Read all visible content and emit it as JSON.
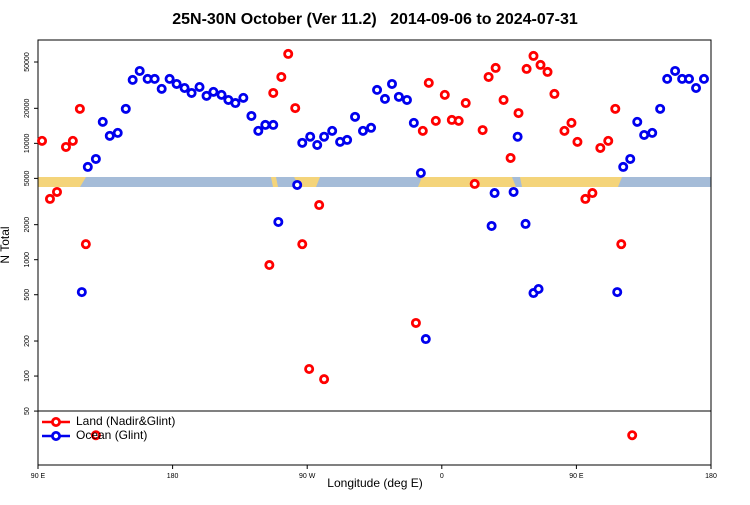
{
  "chart_data": {
    "type": "scatter",
    "title": "25N-30N October (Ver 11.2)   2014-09-06 to 2024-07-31",
    "x_label": "Longitude (deg E)",
    "y_label": "N Total",
    "log_y": true,
    "legend": "bottom left",
    "xlim": [
      90,
      540
    ],
    "xticks": [
      {
        "value": 90,
        "label": "90 E"
      },
      180,
      {
        "value": 270,
        "label": "90 W"
      },
      {
        "value": 360,
        "label": "0"
      },
      {
        "value": 450,
        "label": "90 E"
      },
      {
        "value": 540,
        "label": "180"
      }
    ],
    "ylim": [
      17.2,
      77300
    ],
    "yticks": [
      50,
      100,
      200,
      500,
      1000,
      2000,
      5000,
      10000,
      20000,
      50000
    ],
    "series": [
      {
        "name": "Land (Nadir&Glint)",
        "color": "#ff0000",
        "x": [
          92.7,
          98,
          102.7,
          108.7,
          113.3,
          118,
          122,
          128.7,
          244.7,
          247.3,
          252.7,
          257.3,
          262,
          266.7,
          271.3,
          281.3,
          278,
          342.7,
          347.3,
          351.3,
          356,
          362,
          366.7,
          371.3,
          376,
          382,
          387.3,
          391.3,
          396,
          401.3,
          406,
          411.3,
          416.7,
          421.3,
          426,
          430.7,
          435.3,
          442,
          446.7,
          450.7,
          456,
          460.7,
          466,
          471.3,
          476,
          480,
          487.3
        ],
        "values": [
          10500,
          3330,
          3820,
          9310,
          10500,
          19800,
          1360,
          31,
          900,
          27100,
          37200,
          58700,
          20100,
          1360,
          115,
          94,
          2950,
          286,
          12800,
          33100,
          15600,
          26100,
          15900,
          15600,
          22200,
          4480,
          13000,
          37200,
          44500,
          23600,
          7490,
          18200,
          43600,
          56400,
          47200,
          41100,
          26600,
          12800,
          15000,
          10300,
          3330,
          3740,
          9130,
          10500,
          19800,
          1360,
          31
        ]
      },
      {
        "name": "Ocean (Glint)",
        "color": "#0000ee",
        "x": [
          119.3,
          123.3,
          128.7,
          133.3,
          138,
          143.3,
          148.7,
          153.3,
          158,
          163.3,
          168,
          172.7,
          178,
          182.7,
          188,
          192.7,
          198,
          202.7,
          207.3,
          212.7,
          217.3,
          222,
          227.3,
          232.7,
          237.3,
          242,
          247.3,
          250.7,
          263.3,
          266.7,
          272,
          276.7,
          281.3,
          286.7,
          292,
          296.7,
          302,
          307.3,
          312.7,
          316.7,
          322,
          326.7,
          331.3,
          336.7,
          341.3,
          346,
          349.3,
          393.3,
          395.3,
          408,
          410.7,
          416,
          421.3,
          424.7,
          477.3,
          481.3,
          486,
          490.7,
          495.3,
          500.7,
          506,
          510.7,
          516,
          520.7,
          525.3,
          530,
          535.3
        ],
        "values": [
          527,
          6270,
          7340,
          15300,
          11600,
          12300,
          19800,
          35100,
          41900,
          35800,
          35800,
          29400,
          35800,
          32400,
          29900,
          27100,
          30500,
          25600,
          27700,
          26100,
          23600,
          22200,
          24600,
          17200,
          12800,
          14400,
          14400,
          2110,
          4390,
          10100,
          11400,
          9680,
          11400,
          12800,
          10300,
          10700,
          16900,
          12800,
          13600,
          28800,
          24100,
          32400,
          25100,
          23600,
          15000,
          5560,
          208,
          1950,
          3740,
          3820,
          11400,
          2030,
          517,
          560,
          527,
          6270,
          7340,
          15300,
          11800,
          12300,
          19800,
          35800,
          41900,
          35800,
          35800,
          29900,
          35800
        ]
      }
    ]
  }
}
